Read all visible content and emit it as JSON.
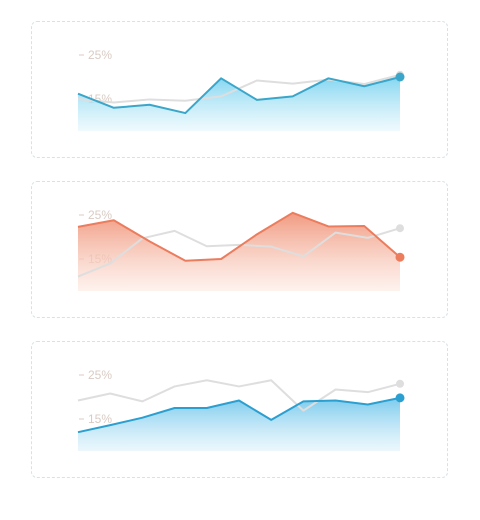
{
  "chart_data": [
    {
      "type": "area",
      "y_ticks": [
        "25%",
        "15%"
      ],
      "ylim": [
        10,
        28
      ],
      "grid": false,
      "colors": {
        "fill_top": "#7dd3f0",
        "fill_bottom": "#e3f6fc",
        "line": "#3aa6c9",
        "muted": "#dedede"
      },
      "series": [
        {
          "values": [
            16.2,
            13.0,
            13.7,
            11.8,
            19.7,
            14.8,
            15.6,
            19.7,
            17.9,
            20.0
          ]
        },
        {
          "values": [
            15.0,
            14.2,
            14.9,
            14.6,
            15.6,
            19.2,
            18.5,
            19.4,
            18.4,
            20.5
          ]
        }
      ]
    },
    {
      "type": "area",
      "y_ticks": [
        "25%",
        "15%"
      ],
      "ylim": [
        10,
        28
      ],
      "grid": false,
      "colors": {
        "fill_top": "#f0957a",
        "fill_bottom": "#fde9e2",
        "line": "#ec7c5e",
        "muted": "#dedede"
      },
      "series": [
        {
          "values": [
            22.3,
            23.8,
            19.0,
            14.6,
            15.0,
            20.6,
            25.5,
            22.4,
            22.5,
            15.4
          ]
        },
        {
          "values": [
            11.0,
            14.0,
            19.7,
            21.4,
            17.9,
            18.2,
            17.8,
            15.6,
            21.0,
            19.8,
            22.0
          ]
        }
      ]
    },
    {
      "type": "area",
      "y_ticks": [
        "25%",
        "15%"
      ],
      "ylim": [
        10,
        28
      ],
      "grid": false,
      "colors": {
        "fill_top": "#75c8ec",
        "fill_bottom": "#dff2fb",
        "line": "#2b9fd0",
        "muted": "#dedede"
      },
      "series": [
        {
          "values": [
            12.0,
            13.6,
            15.3,
            17.5,
            17.5,
            19.2,
            14.8,
            19.0,
            19.2,
            18.3,
            19.8
          ]
        },
        {
          "values": [
            19.2,
            20.8,
            19.0,
            22.4,
            23.8,
            22.4,
            23.8,
            16.9,
            21.7,
            21.1,
            23.0
          ]
        }
      ]
    }
  ]
}
